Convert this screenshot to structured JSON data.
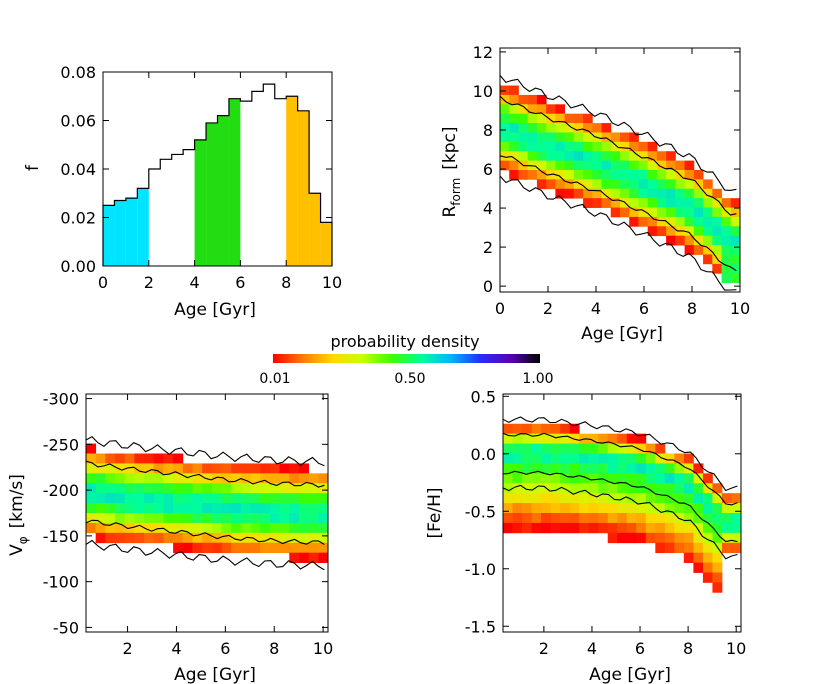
{
  "colorbar": {
    "label": "probability density",
    "tick_labels": [
      "0.01",
      "0.50",
      "1.00"
    ],
    "colors": [
      "#ff0000",
      "#ff7a00",
      "#ffd800",
      "#c8ff00",
      "#3cff00",
      "#00ff9a",
      "#00b4ff",
      "#2a2aff",
      "#5a00b4",
      "#000000"
    ]
  },
  "chart_data": [
    {
      "id": "age-histogram",
      "type": "bar",
      "xlabel": "Age  [Gyr]",
      "ylabel": "f",
      "xlim": [
        0,
        10
      ],
      "ylim": [
        0,
        0.08
      ],
      "x_ticks": [
        "0",
        "2",
        "4",
        "6",
        "8",
        "10"
      ],
      "y_ticks": [
        "0.00",
        "0.02",
        "0.04",
        "0.06",
        "0.08"
      ],
      "bin_width": 0.5,
      "bin_starts": [
        0.0,
        0.5,
        1.0,
        1.5,
        2.0,
        2.5,
        3.0,
        3.5,
        4.0,
        4.5,
        5.0,
        5.5,
        6.0,
        6.5,
        7.0,
        7.5,
        8.0,
        8.5,
        9.0,
        9.5
      ],
      "values": [
        0.025,
        0.027,
        0.028,
        0.032,
        0.04,
        0.044,
        0.046,
        0.048,
        0.052,
        0.059,
        0.062,
        0.069,
        0.068,
        0.072,
        0.075,
        0.069,
        0.07,
        0.064,
        0.03,
        0.018
      ],
      "highlight_ranges": [
        {
          "from": 0,
          "to": 2,
          "color": "#00e5ff"
        },
        {
          "from": 4,
          "to": 6,
          "color": "#22dd11"
        },
        {
          "from": 8,
          "to": 10,
          "color": "#ffc000"
        }
      ]
    },
    {
      "id": "rform-vs-age",
      "type": "heatmap",
      "xlabel": "Age  [Gyr]",
      "ylabel_main": "R",
      "ylabel_sub": "form",
      "ylabel_unit": "[kpc]",
      "xlim": [
        0,
        10
      ],
      "ylim": [
        -0.3,
        12.2
      ],
      "x_ticks": [
        "0",
        "2",
        "4",
        "6",
        "8",
        "10"
      ],
      "y_ticks": [
        "0",
        "2",
        "4",
        "6",
        "8",
        "10",
        "12"
      ],
      "ridge": {
        "x": [
          0,
          2,
          4,
          6,
          8,
          9.7
        ],
        "y": [
          8.2,
          7.2,
          6.3,
          5.2,
          4.0,
          2.2
        ]
      },
      "width": 1.9
    },
    {
      "id": "vphi-vs-age",
      "type": "heatmap",
      "xlabel": "Age  [Gyr]",
      "ylabel_main": "V",
      "ylabel_sub": "φ",
      "ylabel_unit": "[km/s]",
      "xlim": [
        0.3,
        10.2
      ],
      "ylim": [
        -305,
        -45
      ],
      "y_reversed": true,
      "x_ticks": [
        "2",
        "4",
        "6",
        "8",
        "10"
      ],
      "y_ticks": [
        "-300",
        "-250",
        "-200",
        "-150",
        "-100",
        "-50"
      ],
      "ridge": {
        "x": [
          0.3,
          2,
          4,
          6,
          8,
          10
        ],
        "y": [
          -198,
          -192,
          -186,
          -180,
          -176,
          -174
        ]
      },
      "width": 42
    },
    {
      "id": "feh-vs-age",
      "type": "heatmap",
      "xlabel": "Age  [Gyr]",
      "ylabel_main": "[Fe/H]",
      "ylabel_sub": "",
      "ylabel_unit": "",
      "xlim": [
        0.3,
        10.2
      ],
      "ylim": [
        -1.55,
        0.52
      ],
      "x_ticks": [
        "2",
        "4",
        "6",
        "8",
        "10"
      ],
      "y_ticks": [
        "-1.5",
        "-1.0",
        "-0.5",
        "0.0",
        "0.5"
      ],
      "ridge": {
        "x": [
          0.3,
          2,
          4,
          6,
          8,
          9.6
        ],
        "y": [
          0.0,
          0.0,
          -0.05,
          -0.12,
          -0.28,
          -0.6
        ]
      },
      "width": 0.22
    }
  ]
}
